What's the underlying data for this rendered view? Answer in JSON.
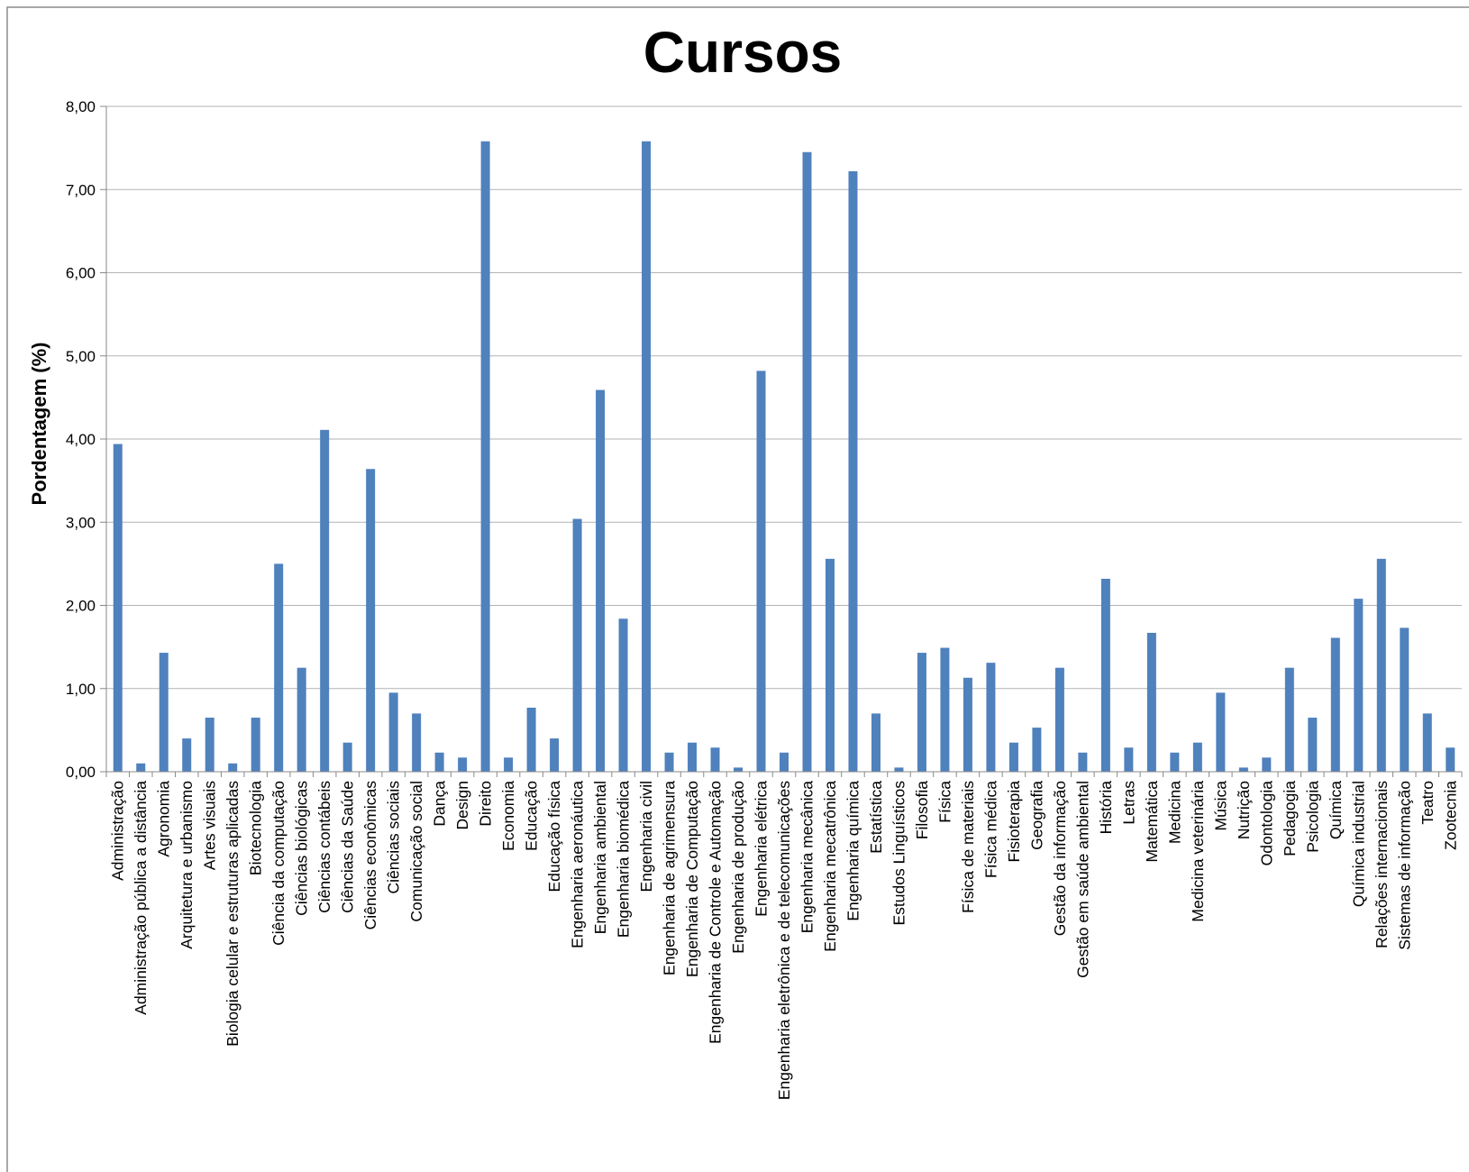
{
  "chart_data": {
    "type": "bar",
    "title": "Cursos",
    "xlabel": "",
    "ylabel": "Pordentagem (%)",
    "ylim": [
      0,
      8
    ],
    "yticks": [
      "0,00",
      "1,00",
      "2,00",
      "3,00",
      "4,00",
      "5,00",
      "6,00",
      "7,00",
      "8,00"
    ],
    "grid": true,
    "legend": "none",
    "bar_color": "#4f81bd",
    "categories": [
      "Administração",
      "Administração pública a distância",
      "Agronomia",
      "Arquitetura e urbanismo",
      "Artes visuais",
      "Biologia celular e estruturas aplicadas",
      "Biotecnologia",
      "Ciência da computação",
      "Ciências biológicas",
      "Ciências contábeis",
      "Ciências da Saúde",
      "Ciências econômicas",
      "Ciências sociais",
      "Comunicação social",
      "Dança",
      "Design",
      "Direito",
      "Economia",
      "Educação",
      "Educação física",
      "Engenharia aeronáutica",
      "Engenharia ambiental",
      "Engenharia biomédica",
      "Engenharia civil",
      "Engenharia de agrimensura",
      "Engenharia de Computação",
      "Engenharia de Controle e Automação",
      "Engenharia de produção",
      "Engenharia elétrica",
      "Engenharia eletrônica e de telecomunicações",
      "Engenharia mecânica",
      "Engenharia mecatrônica",
      "Engenharia química",
      "Estatística",
      "Estudos Linguísticos",
      "Filosofia",
      "Física",
      "Física de materiais",
      "Física médica",
      "Fisioterapia",
      "Geografia",
      "Gestão da informação",
      "Gestão em saúde ambiental",
      "História",
      "Letras",
      "Matemática",
      "Medicina",
      "Medicina veterinária",
      "Música",
      "Nutrição",
      "Odontologia",
      "Pedagogia",
      "Psicologia",
      "Química",
      "Química industrial",
      "Relações internacionais",
      "Sistemas de informação",
      "Teatro",
      "Zootecnia"
    ],
    "values": [
      3.94,
      0.1,
      1.43,
      0.4,
      0.65,
      0.1,
      0.65,
      2.5,
      1.25,
      4.11,
      0.35,
      3.64,
      0.95,
      0.7,
      0.23,
      0.17,
      7.58,
      0.17,
      0.77,
      0.4,
      3.04,
      4.59,
      1.84,
      7.58,
      0.23,
      0.35,
      0.29,
      0.05,
      4.82,
      0.23,
      7.45,
      2.56,
      7.22,
      0.7,
      0.05,
      1.43,
      1.49,
      1.13,
      1.31,
      0.35,
      0.53,
      1.25,
      0.23,
      2.32,
      0.29,
      1.67,
      0.23,
      0.35,
      0.95,
      0.05,
      0.17,
      1.25,
      0.65,
      1.61,
      2.08,
      2.56,
      1.73,
      0.7,
      0.29
    ]
  }
}
